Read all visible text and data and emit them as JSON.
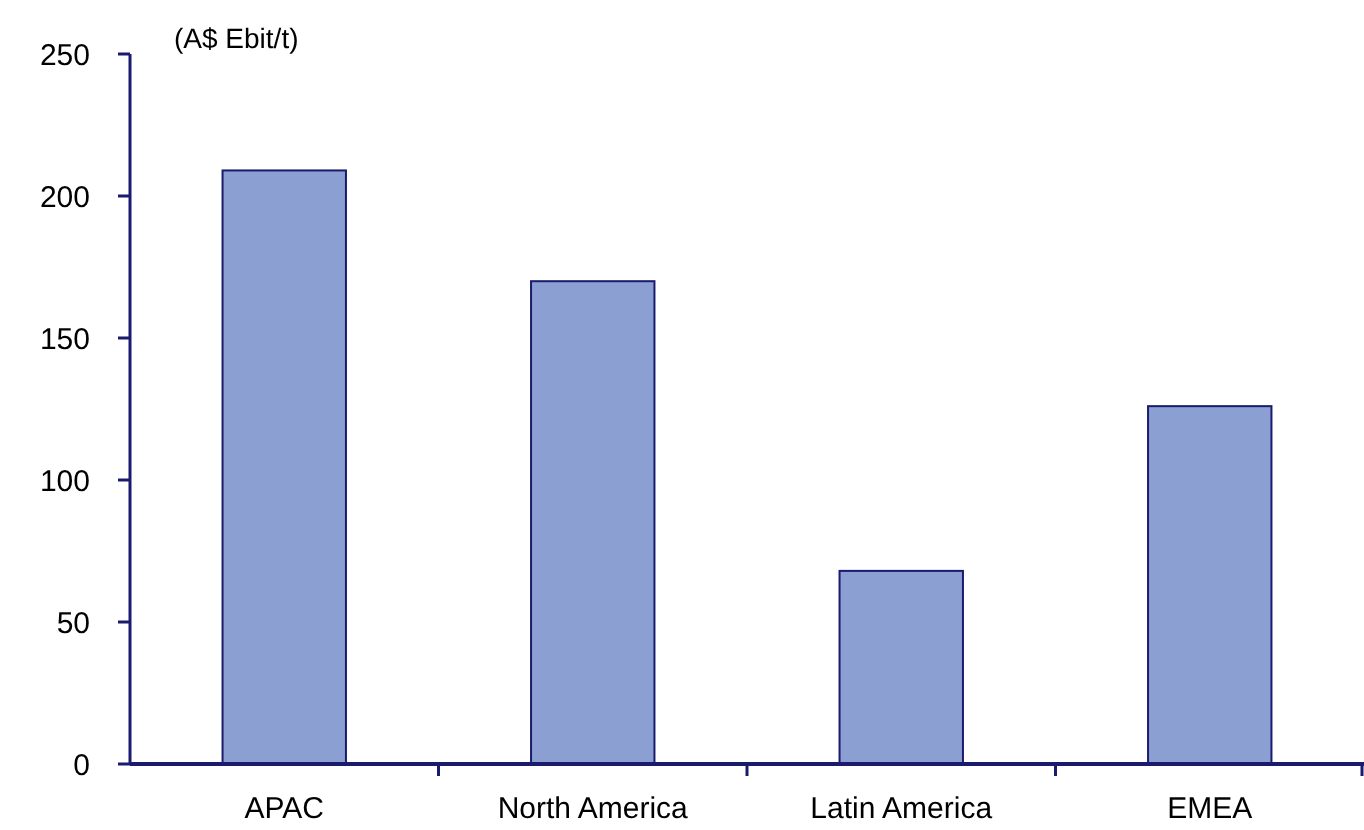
{
  "chart_data": {
    "type": "bar",
    "ylabel": "(A$ Ebit/t)",
    "categories": [
      "APAC",
      "North America",
      "Latin America",
      "EMEA"
    ],
    "values": [
      209,
      170,
      68,
      126
    ],
    "color": "#8c9fd3",
    "ylim": [
      0,
      250
    ],
    "yticks": [
      0,
      50,
      100,
      150,
      200,
      250
    ]
  }
}
